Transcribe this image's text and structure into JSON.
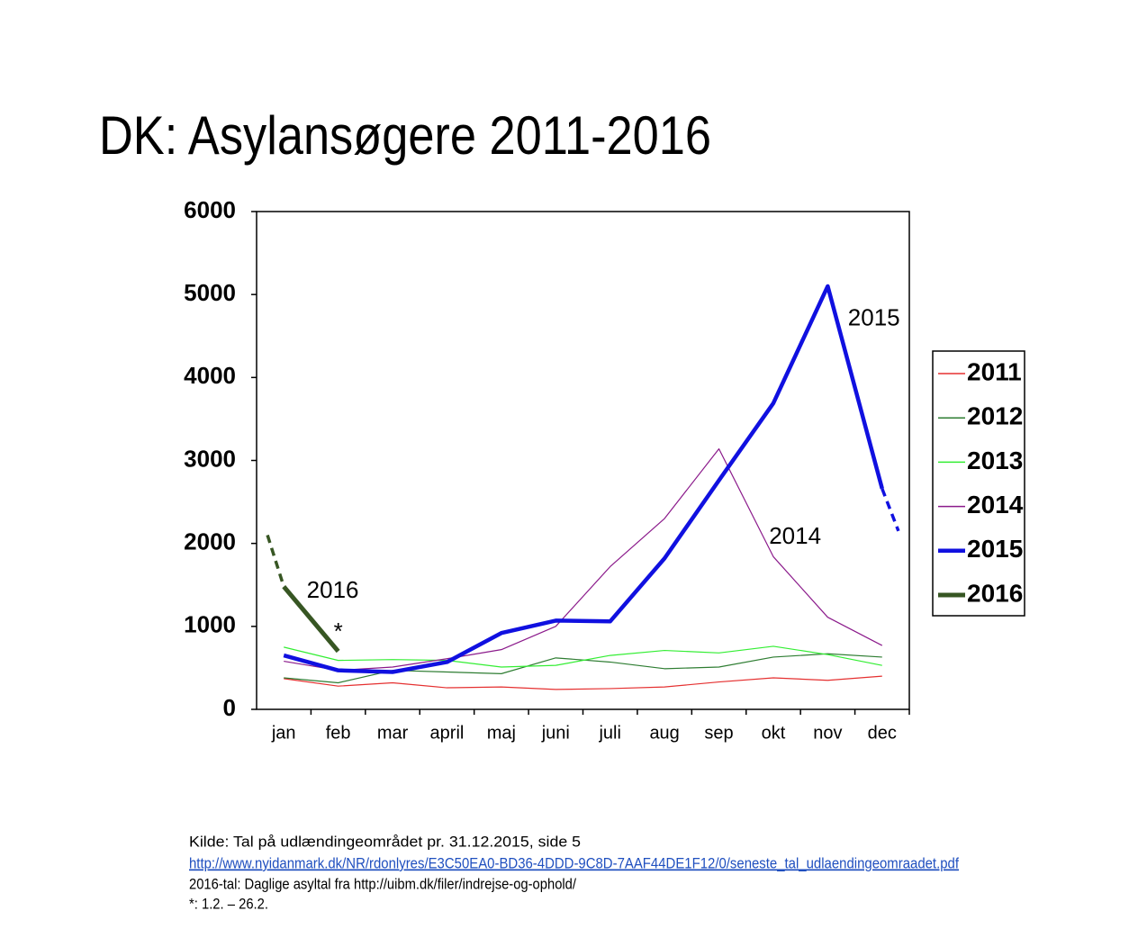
{
  "chart_data": {
    "type": "line",
    "title": "DK: Asylansøgere 2011-2016",
    "categories": [
      "jan",
      "feb",
      "mar",
      "april",
      "maj",
      "juni",
      "juli",
      "aug",
      "sep",
      "okt",
      "nov",
      "dec"
    ],
    "ylim": [
      0,
      6000
    ],
    "yticks": [
      0,
      1000,
      2000,
      3000,
      4000,
      5000,
      6000
    ],
    "series": [
      {
        "name": "2011",
        "color": "#e53030",
        "width": 1.2,
        "values": [
          370,
          280,
          320,
          260,
          270,
          240,
          250,
          270,
          330,
          380,
          350,
          400
        ]
      },
      {
        "name": "2012",
        "color": "#2e7d32",
        "width": 1.2,
        "values": [
          380,
          320,
          470,
          450,
          430,
          620,
          570,
          490,
          510,
          630,
          670,
          630
        ]
      },
      {
        "name": "2013",
        "color": "#33ee33",
        "width": 1.2,
        "values": [
          750,
          590,
          600,
          590,
          510,
          530,
          650,
          710,
          680,
          760,
          660,
          530
        ]
      },
      {
        "name": "2014",
        "color": "#8b1a8b",
        "width": 1.2,
        "values": [
          580,
          470,
          510,
          610,
          720,
          1000,
          1720,
          2300,
          3140,
          1840,
          1110,
          770
        ]
      },
      {
        "name": "2015",
        "color": "#1010e0",
        "width": 4.5,
        "values": [
          650,
          470,
          450,
          570,
          920,
          1070,
          1060,
          1820,
          2760,
          3690,
          5100,
          2660
        ],
        "dashed_x": [
          11,
          11.3
        ],
        "dashed_values": [
          2660,
          2150
        ]
      },
      {
        "name": "2016",
        "color": "#375623",
        "width": 5,
        "values": [
          1480,
          700,
          null,
          null,
          null,
          null,
          null,
          null,
          null,
          null,
          null,
          null
        ],
        "dashed_x": [
          -0.3,
          0
        ],
        "dashed_values": [
          2100,
          1480
        ]
      }
    ],
    "annotations": [
      {
        "text": "2015",
        "x": 10.85,
        "y": 4700
      },
      {
        "text": "2014",
        "x": 9.4,
        "y": 2070
      },
      {
        "text": "2016",
        "x": 0.9,
        "y": 1420
      },
      {
        "text": "*",
        "x": 1,
        "y": 920
      }
    ],
    "legend": "right"
  },
  "footer": {
    "source": "Kilde: Tal på udlændingeområdet pr. 31.12.2015, side 5",
    "link": "http://www.nyidanmark.dk/NR/rdonlyres/E3C50EA0-BD36-4DDD-9C8D-7AAF44DE1F12/0/seneste_tal_udlaendingeomraadet.pdf",
    "note2016": "2016-tal: Daglige asyltal fra http://uibm.dk/filer/indrejse-og-ophold/",
    "note_star": "*: 1.2. – 26.2."
  }
}
